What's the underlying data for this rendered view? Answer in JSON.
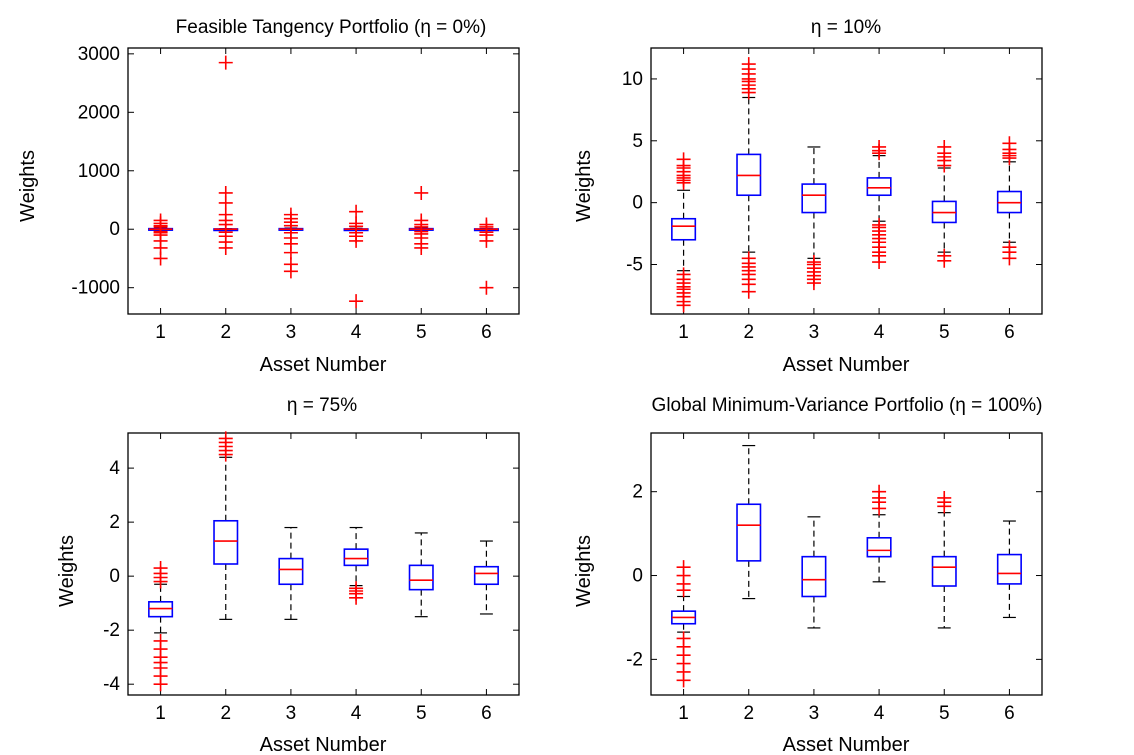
{
  "colors": {
    "box": "#0000ff",
    "median": "#ff0000",
    "outlier": "#ff0000",
    "whisker": "#000000",
    "axes": "#000000"
  },
  "chart_data": [
    {
      "type": "boxplot",
      "title": "Feasible Tangency Portfolio (η = 0%)",
      "xlabel": "Asset Number",
      "ylabel": "Weights",
      "categories": [
        "1",
        "2",
        "3",
        "4",
        "5",
        "6"
      ],
      "ylim": [
        -1450,
        3100
      ],
      "yticks": [
        -1000,
        0,
        1000,
        2000,
        3000
      ],
      "yticklabels": [
        "-1000",
        "0",
        "1000",
        "2000",
        "3000"
      ],
      "boxes": [
        {
          "q1": -15,
          "median": 0,
          "q3": 10,
          "whisker_low": -25,
          "whisker_high": 20,
          "outliers": [
            -500,
            -320,
            -200,
            -100,
            -60,
            -40,
            40,
            60,
            100,
            150
          ]
        },
        {
          "q1": -5,
          "median": 0,
          "q3": 5,
          "whisker_low": -10,
          "whisker_high": 10,
          "outliers": [
            2850,
            620,
            450,
            250,
            150,
            80,
            -50,
            -120,
            -220,
            -320
          ]
        },
        {
          "q1": -10,
          "median": 0,
          "q3": 10,
          "whisker_low": -20,
          "whisker_high": 20,
          "outliers": [
            -720,
            -600,
            -400,
            -250,
            -150,
            -60,
            60,
            120,
            180,
            250
          ]
        },
        {
          "q1": -5,
          "median": 0,
          "q3": 5,
          "whisker_low": -15,
          "whisker_high": 15,
          "outliers": [
            -1230,
            300,
            100,
            50,
            -60,
            -120,
            -200
          ]
        },
        {
          "q1": -15,
          "median": 0,
          "q3": 10,
          "whisker_low": -25,
          "whisker_high": 20,
          "outliers": [
            620,
            150,
            80,
            40,
            -40,
            -80,
            -150,
            -250,
            -320
          ]
        },
        {
          "q1": -5,
          "median": 0,
          "q3": 5,
          "whisker_low": -10,
          "whisker_high": 10,
          "outliers": [
            -1000,
            80,
            40,
            -50,
            -100,
            -200
          ]
        }
      ]
    },
    {
      "type": "boxplot",
      "title": "η = 10%",
      "xlabel": "Asset Number",
      "ylabel": "Weights",
      "categories": [
        "1",
        "2",
        "3",
        "4",
        "5",
        "6"
      ],
      "ylim": [
        -9,
        12.5
      ],
      "yticks": [
        -5,
        0,
        5,
        10
      ],
      "yticklabels": [
        "-5",
        "0",
        "5",
        "10"
      ],
      "boxes": [
        {
          "q1": -3,
          "median": -1.9,
          "q3": -1.3,
          "whisker_low": -5.5,
          "whisker_high": 1.0,
          "outliers": [
            3.5,
            3.0,
            2.8,
            2.5,
            2.2,
            2.0,
            1.8,
            1.6,
            -5.8,
            -6.2,
            -6.5,
            -6.8,
            -7.0,
            -7.3,
            -7.6,
            -8.0,
            -8.3
          ]
        },
        {
          "q1": 0.6,
          "median": 2.2,
          "q3": 3.9,
          "whisker_low": -4.0,
          "whisker_high": 8.5,
          "outliers": [
            11.2,
            10.8,
            10.4,
            10.0,
            9.8,
            9.5,
            9.2,
            8.9,
            -4.5,
            -4.9,
            -5.2,
            -5.5,
            -5.8,
            -6.2,
            -6.6,
            -7.2
          ]
        },
        {
          "q1": -0.8,
          "median": 0.6,
          "q3": 1.5,
          "whisker_low": -4.5,
          "whisker_high": 4.5,
          "outliers": [
            -4.8,
            -5.0,
            -5.3,
            -5.6,
            -5.9,
            -6.2,
            -6.5
          ]
        },
        {
          "q1": 0.6,
          "median": 1.2,
          "q3": 2.0,
          "whisker_low": -1.5,
          "whisker_high": 3.8,
          "outliers": [
            4.5,
            4.2,
            4.0,
            -1.8,
            -2.0,
            -2.3,
            -2.6,
            -2.9,
            -3.2,
            -3.6,
            -4.0,
            -4.3,
            -4.8
          ]
        },
        {
          "q1": -1.6,
          "median": -0.8,
          "q3": 0.1,
          "whisker_low": -4.0,
          "whisker_high": 2.8,
          "outliers": [
            4.5,
            4.0,
            3.7,
            3.4,
            3.0,
            -4.3,
            -4.7
          ]
        },
        {
          "q1": -0.8,
          "median": 0.0,
          "q3": 0.9,
          "whisker_low": -3.2,
          "whisker_high": 3.3,
          "outliers": [
            4.8,
            4.3,
            4.0,
            3.8,
            3.6,
            -3.6,
            -4.0,
            -4.5
          ]
        }
      ]
    },
    {
      "type": "boxplot",
      "title": "η = 75%",
      "xlabel": "Asset Number",
      "ylabel": "Weights",
      "categories": [
        "1",
        "2",
        "3",
        "4",
        "5",
        "6"
      ],
      "ylim": [
        -4.4,
        5.3
      ],
      "yticks": [
        -4,
        -2,
        0,
        2,
        4
      ],
      "yticklabels": [
        "-4",
        "-2",
        "0",
        "2",
        "4"
      ],
      "boxes": [
        {
          "q1": -1.5,
          "median": -1.2,
          "q3": -0.95,
          "whisker_low": -2.1,
          "whisker_high": -0.3,
          "outliers": [
            0.3,
            0.1,
            -0.05,
            -0.2,
            -2.4,
            -2.7,
            -3.0,
            -3.2,
            -3.4,
            -3.7,
            -4.0
          ]
        },
        {
          "q1": 0.45,
          "median": 1.3,
          "q3": 2.05,
          "whisker_low": -1.6,
          "whisker_high": 4.4,
          "outliers": [
            5.1,
            4.95,
            4.8,
            4.65,
            4.5
          ]
        },
        {
          "q1": -0.3,
          "median": 0.25,
          "q3": 0.65,
          "whisker_low": -1.6,
          "whisker_high": 1.8,
          "outliers": []
        },
        {
          "q1": 0.4,
          "median": 0.65,
          "q3": 1.0,
          "whisker_low": -0.35,
          "whisker_high": 1.8,
          "outliers": [
            -0.45,
            -0.55,
            -0.65,
            -0.8
          ]
        },
        {
          "q1": -0.5,
          "median": -0.15,
          "q3": 0.4,
          "whisker_low": -1.5,
          "whisker_high": 1.6,
          "outliers": []
        },
        {
          "q1": -0.3,
          "median": 0.1,
          "q3": 0.35,
          "whisker_low": -1.4,
          "whisker_high": 1.3,
          "outliers": []
        }
      ]
    },
    {
      "type": "boxplot",
      "title": "Global Minimum-Variance Portfolio (η = 100%)",
      "xlabel": "Asset Number",
      "ylabel": "Weights",
      "categories": [
        "1",
        "2",
        "3",
        "4",
        "5",
        "6"
      ],
      "ylim": [
        -2.85,
        3.4
      ],
      "yticks": [
        -2,
        0,
        2
      ],
      "yticklabels": [
        "-2",
        "0",
        "2"
      ],
      "boxes": [
        {
          "q1": -1.15,
          "median": -1.0,
          "q3": -0.85,
          "whisker_low": -1.35,
          "whisker_high": -0.5,
          "outliers": [
            0.2,
            0.0,
            -0.2,
            -0.35,
            -1.5,
            -1.7,
            -1.9,
            -2.1,
            -2.3,
            -2.5
          ]
        },
        {
          "q1": 0.35,
          "median": 1.2,
          "q3": 1.7,
          "whisker_low": -0.55,
          "whisker_high": 3.1,
          "outliers": []
        },
        {
          "q1": -0.5,
          "median": -0.1,
          "q3": 0.45,
          "whisker_low": -1.25,
          "whisker_high": 1.4,
          "outliers": []
        },
        {
          "q1": 0.45,
          "median": 0.6,
          "q3": 0.9,
          "whisker_low": -0.15,
          "whisker_high": 1.45,
          "outliers": [
            2.0,
            1.85,
            1.75,
            1.6
          ]
        },
        {
          "q1": -0.25,
          "median": 0.2,
          "q3": 0.45,
          "whisker_low": -1.25,
          "whisker_high": 1.5,
          "outliers": [
            1.85,
            1.75,
            1.65
          ]
        },
        {
          "q1": -0.2,
          "median": 0.05,
          "q3": 0.5,
          "whisker_low": -1.0,
          "whisker_high": 1.3,
          "outliers": []
        }
      ]
    }
  ]
}
